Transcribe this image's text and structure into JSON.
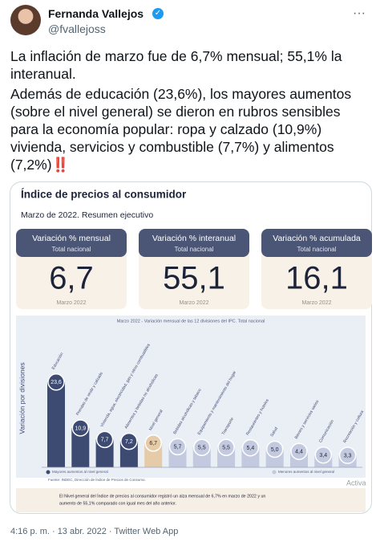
{
  "tweet": {
    "name": "Fernanda Vallejos",
    "handle": "@fvallejoss",
    "paragraphs": [
      "La inflación de marzo fue de 6,7% mensual; 55,1% la interanual.",
      "Además de educación (23,6%), los mayores aumentos (sobre el nivel general) se dieron en rubros sensibles para la economía popular: ropa y calzado (10,9%) vivienda, servicios y combustible (7,7%) y alimentos (7,2%)‼️"
    ],
    "timestamp": "4:16 p. m. · 13 abr. 2022 · Twitter Web App"
  },
  "infographic": {
    "title": "Índice de precios al consumidor",
    "subtitle": "Marzo de 2022. Resumen ejecutivo",
    "cards": [
      {
        "header": "Variación % mensual",
        "sub": "Total nacional",
        "value": "6,7",
        "period": "Marzo 2022"
      },
      {
        "header": "Variación % interanual",
        "sub": "Total nacional",
        "value": "55,1",
        "period": "Marzo 2022"
      },
      {
        "header": "Variación % acumulada",
        "sub": "Total nacional",
        "value": "16,1",
        "period": "Marzo 2022"
      }
    ],
    "legend": [
      "Mayores aumentos al nivel general",
      "Menores aumentos al nivel general"
    ],
    "source": "Fuente: INDEC, Dirección de Índice de Precios de Consumo.",
    "note_lines": [
      "El Nivel general del Índice de precios al consumidor registró un alza mensual de 6,7% en marzo de 2022 y un",
      "aumento de 55,1% comparado con igual mes del año anterior."
    ],
    "watermark": "Activa"
  },
  "chart_data": {
    "type": "bar",
    "title": "Marzo 2022 - Variación mensual de las 12 divisiones del IPC. Total nacional",
    "y_label": "Variación por divisiones",
    "categories": [
      "Educación",
      "Prendas de vestir y calzado",
      "Vivienda, agua, electricidad, gas y otros combustibles",
      "Alimentos y bebidas no alcohólicas",
      "Nivel general",
      "Bebidas alcohólicas y tabaco",
      "Equipamiento y mantenimiento del hogar",
      "Transporte",
      "Restaurantes y hoteles",
      "Salud",
      "Bienes y servicios varios",
      "Comunicación",
      "Recreación y cultura"
    ],
    "values": [
      23.6,
      10.9,
      7.7,
      7.2,
      6.7,
      5.7,
      5.5,
      5.5,
      5.4,
      5.0,
      4.4,
      3.4,
      3.3
    ],
    "value_labels": [
      "23,6",
      "10,9",
      "7,7",
      "7,2",
      "6,7",
      "5,7",
      "5,5",
      "5,5",
      "5,4",
      "5,0",
      "4,4",
      "3,4",
      "3,3"
    ],
    "colors": [
      "#3d4a72",
      "#3d4a72",
      "#3d4a72",
      "#3d4a72",
      "#e6cba8",
      "#c3c9de",
      "#c3c9de",
      "#c3c9de",
      "#c3c9de",
      "#c3c9de",
      "#c3c9de",
      "#c3c9de",
      "#c3c9de"
    ]
  }
}
